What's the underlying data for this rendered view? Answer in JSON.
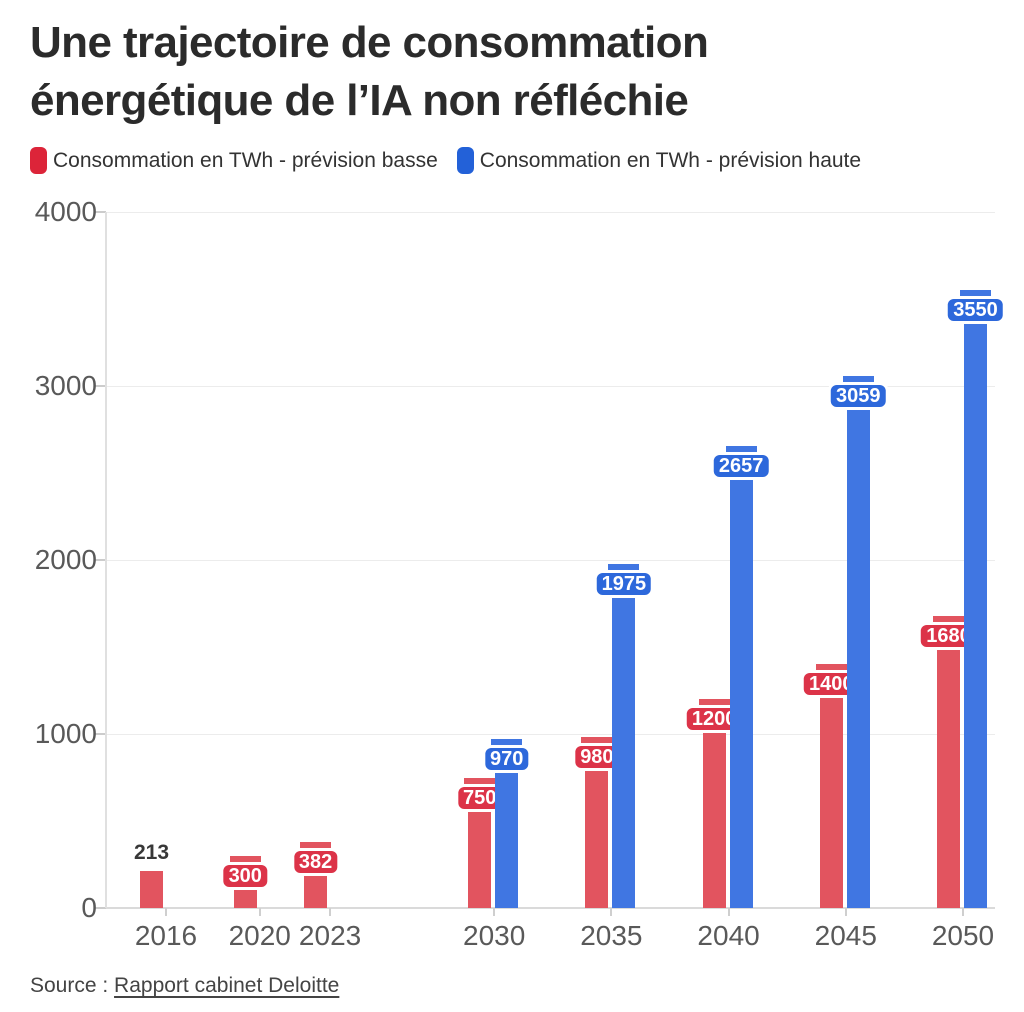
{
  "title": {
    "line1": "Une trajectoire de consommation",
    "line2": "énergétique de l’IA non réfléchie"
  },
  "legend": [
    {
      "label": "Consommation en TWh - prévision basse",
      "color": "#dc2439"
    },
    {
      "label": "Consommation en TWh - prévision haute",
      "color": "#2361d8"
    }
  ],
  "source": {
    "prefix": "Source : ",
    "link": "Rapport cabinet Deloitte"
  },
  "chart_data": {
    "type": "bar",
    "title": "Une trajectoire de consommation énergétique de l’IA non réfléchie",
    "categories": [
      2016,
      2020,
      2023,
      2030,
      2035,
      2040,
      2045,
      2050
    ],
    "series": [
      {
        "name": "Consommation en TWh - prévision basse",
        "bar_color": "#e2545f",
        "label_color": "#dc3348",
        "values": [
          213,
          300,
          382,
          750,
          980,
          1200,
          1400,
          1680
        ]
      },
      {
        "name": "Consommation en TWh - prévision haute",
        "bar_color": "#4076e2",
        "label_color": "#2d68db",
        "values": [
          null,
          null,
          null,
          970,
          1975,
          2657,
          3059,
          3550
        ]
      }
    ],
    "xlabel": "",
    "ylabel": "",
    "ylim": [
      0,
      4000
    ],
    "yticks": [
      0,
      1000,
      2000,
      3000,
      4000
    ],
    "x_axis_type": "linear-years",
    "grid": true,
    "legend_position": "top",
    "plain_label_points": [
      {
        "series_index": 0,
        "category_index": 0
      }
    ]
  }
}
